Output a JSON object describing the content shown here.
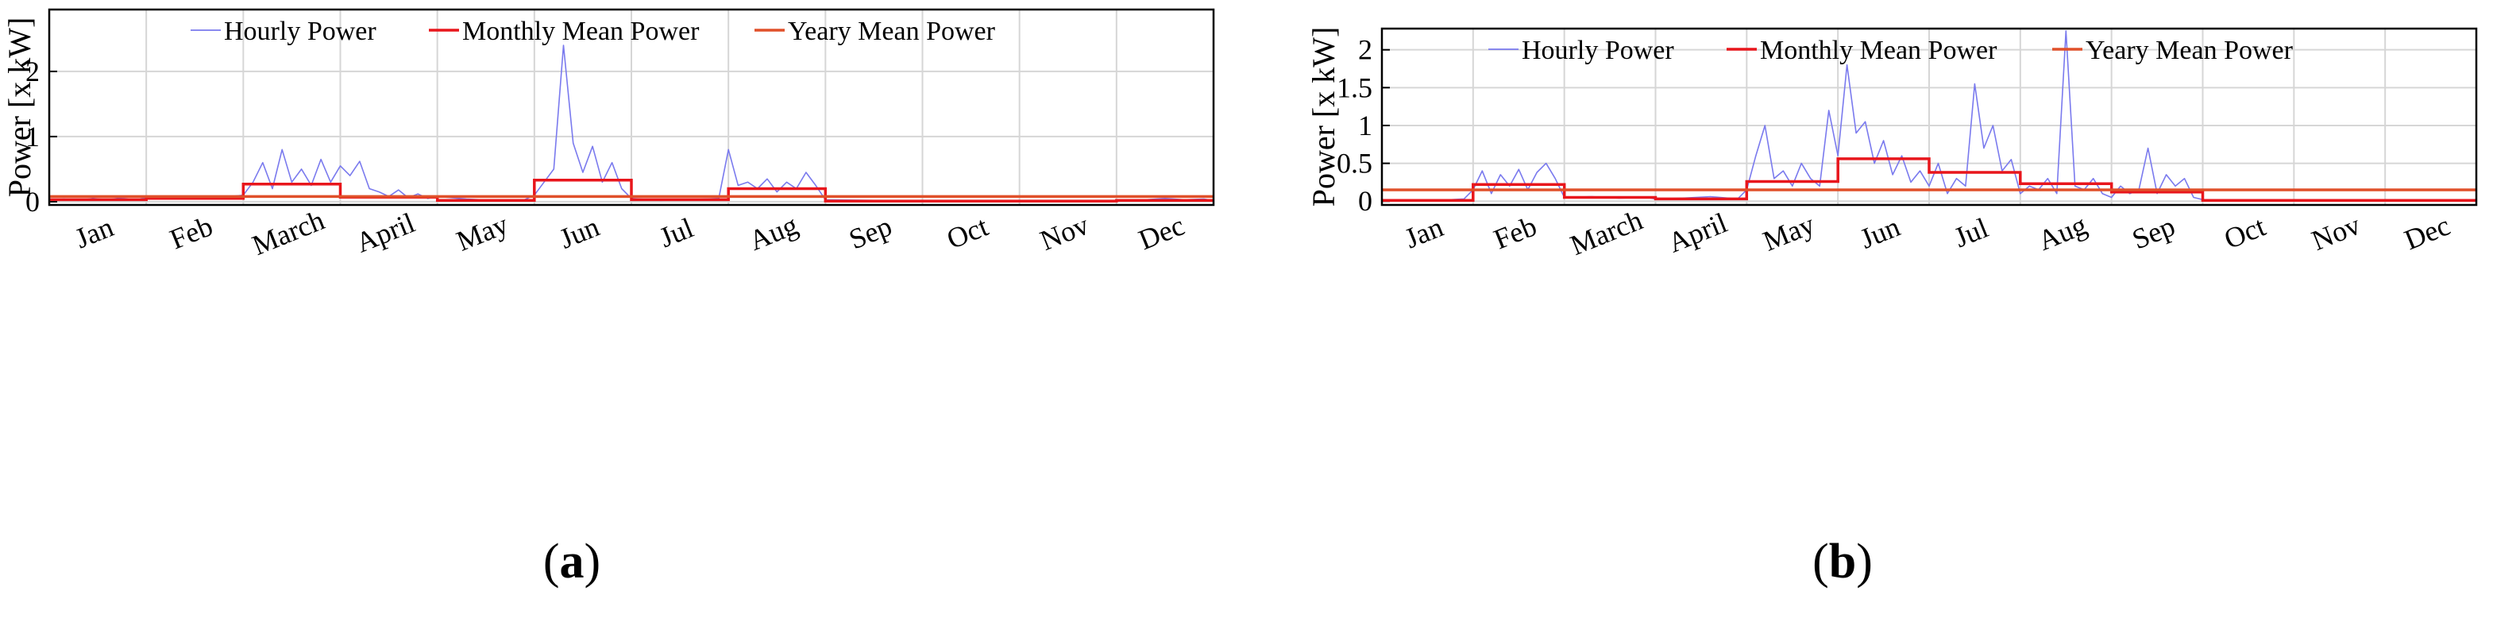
{
  "panels": [
    {
      "label": "a",
      "chart_data": {
        "type": "line",
        "ylabel": "Power [x kW]",
        "xlabel": "",
        "xlim": [
          0,
          12
        ],
        "ylim": [
          -0.05,
          2.95
        ],
        "yticks": [
          0,
          1,
          2
        ],
        "month_labels": [
          "Jan",
          "Feb",
          "March",
          "April",
          "May",
          "Jun",
          "Jul",
          "Aug",
          "Sep",
          "Oct",
          "Nov",
          "Dec"
        ],
        "legend": [
          "Hourly Power",
          "Monthly Mean Power",
          "Yeary Mean Power"
        ],
        "legend_position": "top",
        "grid": true,
        "colors": {
          "hourly": "#7a7aee",
          "monthly": "#e8161c",
          "yearly": "#e0502a"
        },
        "series": [
          {
            "name": "Hourly Power",
            "x": [
              0.0,
              0.15,
              0.3,
              0.45,
              0.6,
              0.75,
              0.9,
              1.0,
              1.2,
              1.4,
              1.6,
              1.8,
              2.0,
              2.1,
              2.2,
              2.3,
              2.4,
              2.5,
              2.6,
              2.7,
              2.8,
              2.9,
              3.0,
              3.1,
              3.2,
              3.3,
              3.4,
              3.5,
              3.6,
              3.7,
              3.8,
              3.9,
              4.0,
              4.3,
              4.6,
              4.9,
              5.0,
              5.1,
              5.2,
              5.3,
              5.4,
              5.5,
              5.6,
              5.7,
              5.8,
              5.9,
              6.0,
              6.3,
              6.6,
              6.9,
              7.0,
              7.1,
              7.2,
              7.3,
              7.4,
              7.5,
              7.6,
              7.7,
              7.8,
              7.9,
              8.0,
              8.5,
              9.0,
              9.5,
              10.0,
              10.5,
              11.0,
              11.3,
              11.5,
              11.7,
              11.9,
              12.0
            ],
            "values": [
              0.02,
              0.04,
              0.02,
              0.05,
              0.03,
              0.06,
              0.08,
              0.05,
              0.04,
              0.06,
              0.05,
              0.07,
              0.1,
              0.3,
              0.6,
              0.2,
              0.8,
              0.3,
              0.5,
              0.25,
              0.65,
              0.3,
              0.55,
              0.4,
              0.62,
              0.2,
              0.15,
              0.08,
              0.18,
              0.06,
              0.12,
              0.05,
              0.08,
              0.04,
              0.02,
              0.03,
              0.1,
              0.3,
              0.5,
              2.4,
              0.9,
              0.45,
              0.85,
              0.3,
              0.6,
              0.2,
              0.05,
              0.02,
              0.03,
              0.05,
              0.8,
              0.25,
              0.3,
              0.2,
              0.35,
              0.15,
              0.3,
              0.2,
              0.45,
              0.25,
              0.03,
              0.02,
              0.01,
              0.02,
              0.01,
              0.02,
              0.02,
              0.03,
              0.05,
              0.03,
              0.04,
              0.02
            ]
          },
          {
            "name": "Monthly Mean Power",
            "step_values": [
              0.03,
              0.05,
              0.27,
              0.07,
              0.02,
              0.33,
              0.03,
              0.2,
              0.01,
              0.01,
              0.01,
              0.02
            ]
          },
          {
            "name": "Yeary Mean Power",
            "value": 0.08
          }
        ]
      }
    },
    {
      "label": "b",
      "chart_data": {
        "type": "line",
        "ylabel": "Power [x kW]",
        "xlabel": "",
        "xlim": [
          0,
          12
        ],
        "ylim": [
          -0.05,
          2.28
        ],
        "yticks": [
          0,
          0.5,
          1,
          1.5,
          2
        ],
        "month_labels": [
          "Jan",
          "Feb",
          "March",
          "April",
          "May",
          "Jun",
          "Jul",
          "Aug",
          "Sep",
          "Oct",
          "Nov",
          "Dec"
        ],
        "legend": [
          "Hourly Power",
          "Monthly Mean Power",
          "Yeary Mean Power"
        ],
        "legend_position": "top",
        "grid": true,
        "colors": {
          "hourly": "#7a7aee",
          "monthly": "#e8161c",
          "yearly": "#e0502a"
        },
        "series": [
          {
            "name": "Hourly Power",
            "x": [
              0.0,
              0.3,
              0.6,
              0.9,
              1.0,
              1.1,
              1.2,
              1.3,
              1.4,
              1.5,
              1.6,
              1.7,
              1.8,
              1.9,
              2.0,
              2.3,
              2.6,
              2.9,
              3.0,
              3.3,
              3.6,
              3.9,
              4.0,
              4.1,
              4.2,
              4.3,
              4.4,
              4.5,
              4.6,
              4.7,
              4.8,
              4.9,
              5.0,
              5.1,
              5.2,
              5.3,
              5.4,
              5.5,
              5.6,
              5.7,
              5.8,
              5.9,
              6.0,
              6.1,
              6.2,
              6.3,
              6.4,
              6.5,
              6.6,
              6.7,
              6.8,
              6.9,
              7.0,
              7.1,
              7.2,
              7.3,
              7.4,
              7.5,
              7.6,
              7.7,
              7.8,
              7.9,
              8.0,
              8.1,
              8.2,
              8.3,
              8.4,
              8.5,
              8.6,
              8.7,
              8.8,
              8.9,
              9.0,
              9.5,
              10.0,
              10.5,
              11.0,
              11.5,
              12.0
            ],
            "values": [
              0.01,
              0.02,
              0.01,
              0.03,
              0.15,
              0.4,
              0.1,
              0.35,
              0.2,
              0.42,
              0.15,
              0.38,
              0.5,
              0.3,
              0.05,
              0.06,
              0.04,
              0.05,
              0.03,
              0.04,
              0.06,
              0.03,
              0.15,
              0.6,
              1.0,
              0.3,
              0.4,
              0.2,
              0.5,
              0.3,
              0.2,
              1.2,
              0.6,
              1.8,
              0.9,
              1.05,
              0.5,
              0.8,
              0.35,
              0.6,
              0.25,
              0.4,
              0.2,
              0.5,
              0.1,
              0.3,
              0.2,
              1.55,
              0.7,
              1.0,
              0.4,
              0.55,
              0.1,
              0.2,
              0.15,
              0.3,
              0.1,
              2.25,
              0.2,
              0.15,
              0.3,
              0.1,
              0.05,
              0.2,
              0.1,
              0.15,
              0.7,
              0.1,
              0.35,
              0.2,
              0.3,
              0.05,
              0.02,
              0.01,
              0.02,
              0.01,
              0.02,
              0.01,
              0.01
            ]
          },
          {
            "name": "Monthly Mean Power",
            "step_values": [
              0.01,
              0.22,
              0.05,
              0.03,
              0.26,
              0.56,
              0.38,
              0.23,
              0.12,
              0.01,
              0.01,
              0.01
            ]
          },
          {
            "name": "Yeary Mean Power",
            "value": 0.15
          }
        ]
      }
    }
  ]
}
